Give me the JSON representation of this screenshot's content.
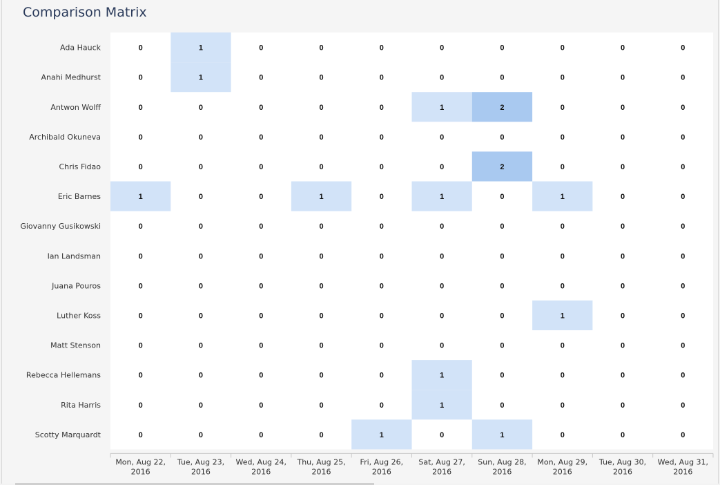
{
  "title": "Comparison Matrix",
  "chart_data": {
    "type": "heatmap",
    "title": "Comparison Matrix",
    "rows": [
      "Ada Hauck",
      "Anahi Medhurst",
      "Antwon Wolff",
      "Archibald Okuneva",
      "Chris Fidao",
      "Eric Barnes",
      "Giovanny Gusikowski",
      "Ian Landsman",
      "Juana Pouros",
      "Luther Koss",
      "Matt Stenson",
      "Rebecca Hellemans",
      "Rita Harris",
      "Scotty Marquardt"
    ],
    "columns": [
      [
        "Mon, Aug 22,",
        "2016"
      ],
      [
        "Tue, Aug 23,",
        "2016"
      ],
      [
        "Wed, Aug 24,",
        "2016"
      ],
      [
        "Thu, Aug 25,",
        "2016"
      ],
      [
        "Fri, Aug 26,",
        "2016"
      ],
      [
        "Sat, Aug 27,",
        "2016"
      ],
      [
        "Sun, Aug 28,",
        "2016"
      ],
      [
        "Mon, Aug 29,",
        "2016"
      ],
      [
        "Tue, Aug 30,",
        "2016"
      ],
      [
        "Wed, Aug 31,",
        "2016"
      ]
    ],
    "values": [
      [
        0,
        1,
        0,
        0,
        0,
        0,
        0,
        0,
        0,
        0
      ],
      [
        0,
        1,
        0,
        0,
        0,
        0,
        0,
        0,
        0,
        0
      ],
      [
        0,
        0,
        0,
        0,
        0,
        1,
        2,
        0,
        0,
        0
      ],
      [
        0,
        0,
        0,
        0,
        0,
        0,
        0,
        0,
        0,
        0
      ],
      [
        0,
        0,
        0,
        0,
        0,
        0,
        2,
        0,
        0,
        0
      ],
      [
        1,
        0,
        0,
        1,
        0,
        1,
        0,
        1,
        0,
        0
      ],
      [
        0,
        0,
        0,
        0,
        0,
        0,
        0,
        0,
        0,
        0
      ],
      [
        0,
        0,
        0,
        0,
        0,
        0,
        0,
        0,
        0,
        0
      ],
      [
        0,
        0,
        0,
        0,
        0,
        0,
        0,
        0,
        0,
        0
      ],
      [
        0,
        0,
        0,
        0,
        0,
        0,
        0,
        1,
        0,
        0
      ],
      [
        0,
        0,
        0,
        0,
        0,
        0,
        0,
        0,
        0,
        0
      ],
      [
        0,
        0,
        0,
        0,
        0,
        1,
        0,
        0,
        0,
        0
      ],
      [
        0,
        0,
        0,
        0,
        0,
        1,
        0,
        0,
        0,
        0
      ],
      [
        0,
        0,
        0,
        0,
        1,
        0,
        1,
        0,
        0,
        0
      ]
    ],
    "colors": {
      "0": "#ffffff",
      "1": "#d2e3f8",
      "2": "#a9c9f0"
    },
    "legend": "none"
  }
}
